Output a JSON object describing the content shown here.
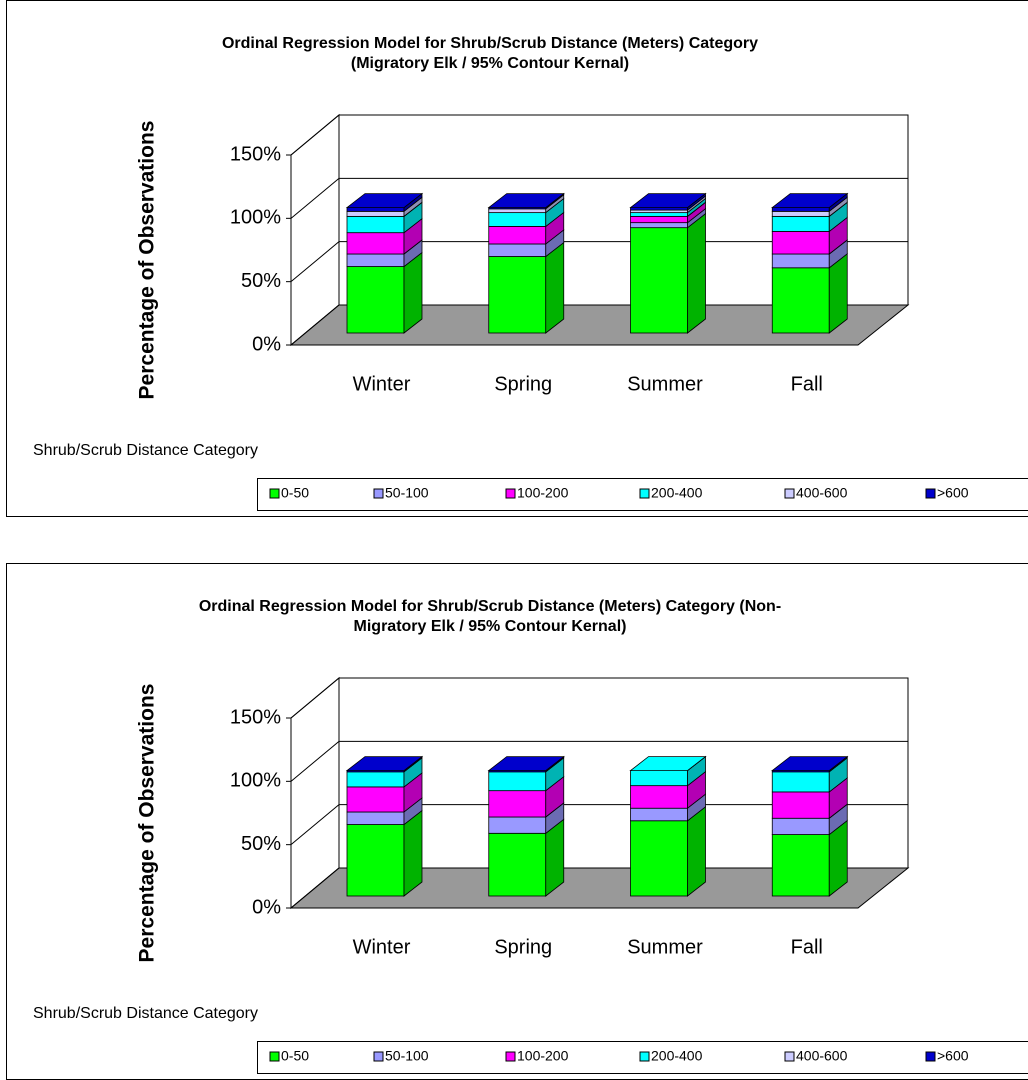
{
  "chart_data": [
    {
      "type": "bar3d_stacked",
      "title": [
        "Ordinal Regression Model for Shrub/Scrub Distance (Meters) Category",
        "(Migratory Elk / 95% Contour Kernal)"
      ],
      "y_label": "Percentage of Observations",
      "legend_title": "Shrub/Scrub Distance Category",
      "categories": [
        "Winter",
        "Spring",
        "Summer",
        "Fall"
      ],
      "ylim": [
        0,
        150
      ],
      "yticks": [
        {
          "value": 0,
          "label": "0%"
        },
        {
          "value": 50,
          "label": "50%"
        },
        {
          "value": 100,
          "label": "100%"
        },
        {
          "value": 150,
          "label": "150%"
        }
      ],
      "series": [
        {
          "name": "0-50",
          "color": "#00ff00",
          "values": [
            53,
            61,
            84,
            52
          ]
        },
        {
          "name": "50-100",
          "color": "#9999ff",
          "values": [
            10,
            10,
            4,
            11
          ]
        },
        {
          "name": "100-200",
          "color": "#ff00ff",
          "values": [
            17,
            14,
            5,
            18
          ]
        },
        {
          "name": "200-400",
          "color": "#00ffff",
          "values": [
            13,
            11,
            3,
            12
          ]
        },
        {
          "name": "400-600",
          "color": "#ccccff",
          "values": [
            4,
            3,
            2,
            4
          ]
        },
        {
          "name": ">600",
          "color": "#0000cc",
          "values": [
            3,
            1,
            2,
            3
          ]
        }
      ]
    },
    {
      "type": "bar3d_stacked",
      "title": [
        "Ordinal Regression Model for Shrub/Scrub Distance (Meters) Category (Non-",
        "Migratory Elk / 95% Contour Kernal)"
      ],
      "y_label": "Percentage of Observations",
      "legend_title": "Shrub/Scrub Distance Category",
      "categories": [
        "Winter",
        "Spring",
        "Summer",
        "Fall"
      ],
      "ylim": [
        0,
        150
      ],
      "yticks": [
        {
          "value": 0,
          "label": "0%"
        },
        {
          "value": 50,
          "label": "50%"
        },
        {
          "value": 100,
          "label": "100%"
        },
        {
          "value": 150,
          "label": "150%"
        }
      ],
      "series": [
        {
          "name": "0-50",
          "color": "#00ff00",
          "values": [
            57,
            50,
            60,
            49
          ]
        },
        {
          "name": "50-100",
          "color": "#9999ff",
          "values": [
            10,
            13,
            10,
            13
          ]
        },
        {
          "name": "100-200",
          "color": "#ff00ff",
          "values": [
            20,
            21,
            18,
            21
          ]
        },
        {
          "name": "200-400",
          "color": "#00ffff",
          "values": [
            12,
            15,
            12,
            16
          ]
        },
        {
          "name": "400-600",
          "color": "#ccccff",
          "values": [
            0,
            0,
            0,
            0
          ]
        },
        {
          "name": ">600",
          "color": "#0000cc",
          "values": [
            1,
            1,
            0,
            1
          ]
        }
      ]
    }
  ]
}
